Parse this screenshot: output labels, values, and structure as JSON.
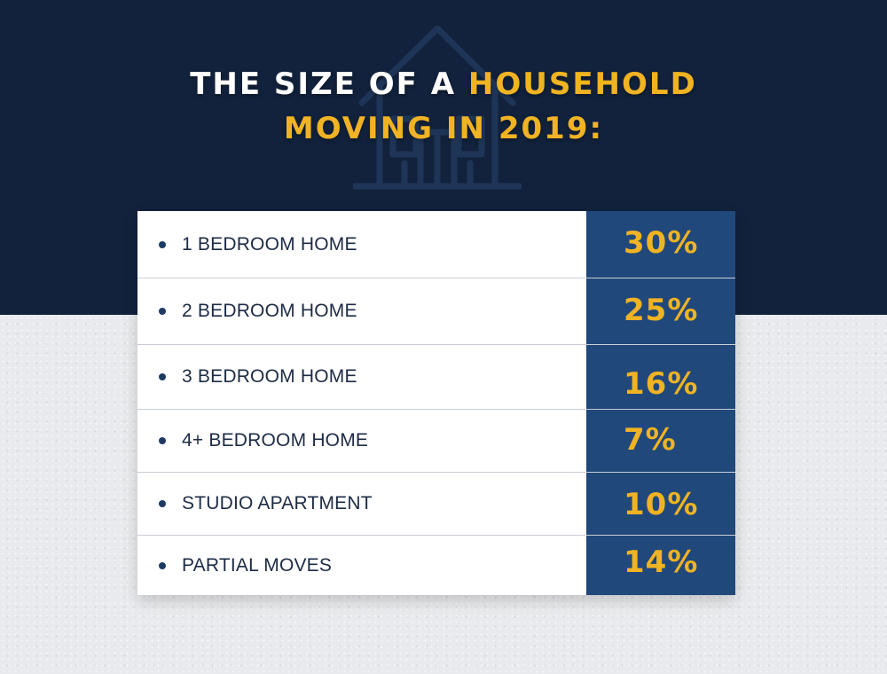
{
  "header": {
    "title_part1": "THE SIZE OF A",
    "title_part2": "HOUSEHOLD",
    "title_line2": "MOVING IN 2019:"
  },
  "colors": {
    "navy": "#12223c",
    "value_cell": "#21487a",
    "gold": "#f0b323"
  },
  "icons": {
    "background_icon": "house-outline-icon"
  },
  "chart_data": {
    "type": "table",
    "title": "THE SIZE OF A HOUSEHOLD MOVING IN 2019:",
    "categories": [
      "1 BEDROOM HOME",
      "2 BEDROOM HOME",
      "3 BEDROOM HOME",
      "4+ BEDROOM HOME",
      "STUDIO APARTMENT",
      "PARTIAL MOVES"
    ],
    "values": [
      30,
      25,
      16,
      7,
      10,
      14
    ],
    "value_labels": [
      "30%",
      "25%",
      "16%",
      "7%",
      "10%",
      "14%"
    ],
    "unit": "%"
  }
}
